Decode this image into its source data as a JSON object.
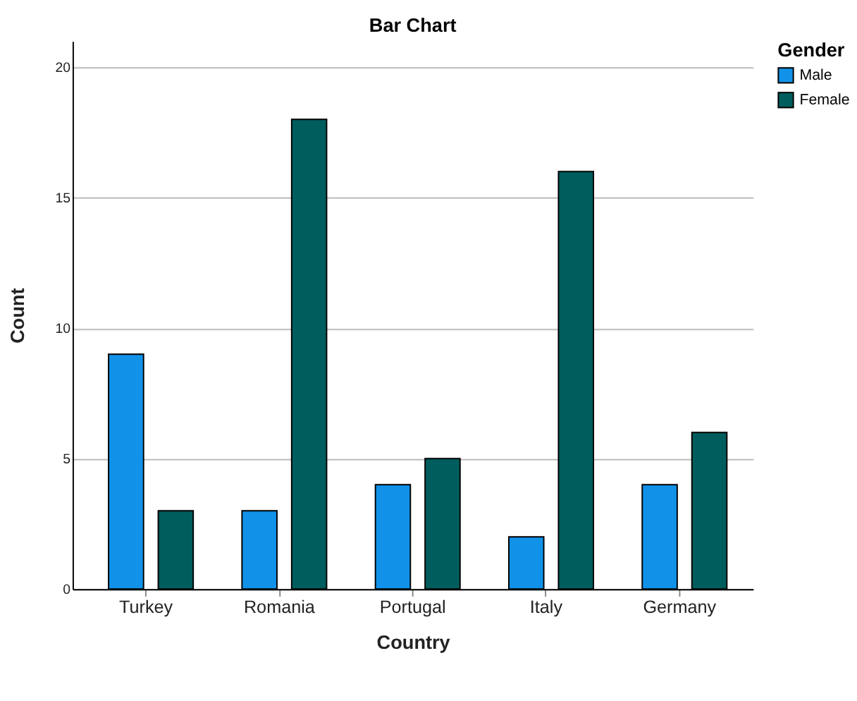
{
  "chart_data": {
    "type": "bar",
    "title": "Bar Chart",
    "xlabel": "Country",
    "ylabel": "Count",
    "legend_title": "Gender",
    "categories": [
      "Turkey",
      "Romania",
      "Portugal",
      "Italy",
      "Germany"
    ],
    "series": [
      {
        "name": "Male",
        "color": "#1192e8",
        "values": [
          9,
          3,
          4,
          2,
          4
        ]
      },
      {
        "name": "Female",
        "color": "#005d5d",
        "values": [
          3,
          18,
          5,
          16,
          6
        ]
      }
    ],
    "ylim": [
      0,
      21
    ],
    "yticks": [
      0,
      5,
      10,
      15,
      20
    ],
    "grid": "y",
    "legend": "top right"
  }
}
